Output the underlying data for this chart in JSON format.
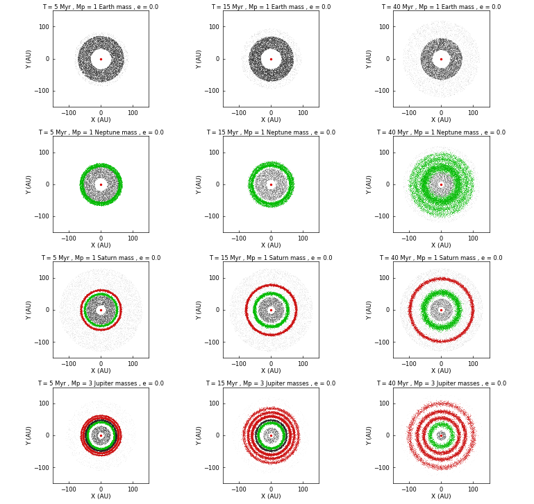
{
  "figsize": [
    7.69,
    7.27
  ],
  "dpi": 100,
  "rows": 4,
  "cols": 3,
  "titles": [
    [
      "T = 5 Myr , Mp = 1 Earth mass , e = 0.0",
      "T = 15 Myr , Mp = 1 Earth mass , e = 0.0",
      "T = 40 Myr , Mp = 1 Earth mass , e = 0.0"
    ],
    [
      "T = 5 Myr , Mp = 1 Neptune mass , e = 0.0",
      "T = 15 Myr , Mp = 1 Neptune mass , e = 0.0",
      "T = 40 Myr , Mp = 1 Neptune mass , e = 0.0"
    ],
    [
      "T = 5 Myr , Mp = 1 Saturn mass , e = 0.0",
      "T = 15 Myr , Mp = 1 Saturn mass , e = 0.0",
      "T = 40 Myr , Mp = 1 Saturn mass , e = 0.0"
    ],
    [
      "T = 5 Myr , Mp = 3 Jupiter masses , e = 0.0",
      "T = 15 Myr , Mp = 3 Jupiter masses , e = 0.0",
      "T = 40 Myr , Mp = 3 Jupiter masses , e = 0.0"
    ]
  ],
  "xlabel": "X (AU)",
  "ylabel": "Y (AU)",
  "xlim": [
    -150,
    150
  ],
  "ylim": [
    -150,
    150
  ],
  "xticks": [
    -100,
    0,
    100
  ],
  "yticks": [
    -100,
    0,
    100
  ],
  "background_color": "#ffffff",
  "black_dot_color": "#222222",
  "green_dot_color": "#00bb00",
  "red_dot_color": "#cc1111",
  "star_color": "#dd0000",
  "title_fontsize": 6.0,
  "axis_label_fontsize": 6.5,
  "tick_fontsize": 6,
  "panel_configs": [
    [
      {
        "black_disk_inner": 32,
        "black_disk_outer": 72,
        "black_disk_n": 8000,
        "black_disk_alpha": 0.7,
        "extra_rings": [],
        "sparse_inner": 72,
        "sparse_outer": 85,
        "sparse_n": 500,
        "sparse_alpha": 0.3
      },
      {
        "black_disk_inner": 32,
        "black_disk_outer": 70,
        "black_disk_n": 8000,
        "black_disk_alpha": 0.75,
        "extra_rings": [],
        "sparse_inner": 70,
        "sparse_outer": 95,
        "sparse_n": 800,
        "sparse_alpha": 0.25
      },
      {
        "black_disk_inner": 28,
        "black_disk_outer": 65,
        "black_disk_n": 6000,
        "black_disk_alpha": 0.6,
        "extra_rings": [],
        "sparse_inner": 65,
        "sparse_outer": 120,
        "sparse_n": 2500,
        "sparse_alpha": 0.2
      }
    ],
    [
      {
        "black_disk_inner": 20,
        "black_disk_outer": 60,
        "black_disk_n": 5000,
        "black_disk_alpha": 0.5,
        "extra_rings": [
          {
            "color": "green",
            "r": 58,
            "spread": 2.0,
            "n": 3000,
            "alpha": 0.9
          },
          {
            "color": "green",
            "r": 64,
            "spread": 1.5,
            "n": 2000,
            "alpha": 0.9
          }
        ],
        "sparse_inner": 0,
        "sparse_outer": 0,
        "sparse_n": 0,
        "sparse_alpha": 0.0
      },
      {
        "black_disk_inner": 15,
        "black_disk_outer": 50,
        "black_disk_n": 3000,
        "black_disk_alpha": 0.45,
        "extra_rings": [
          {
            "color": "green",
            "r": 60,
            "spread": 2.5,
            "n": 4000,
            "alpha": 0.9
          },
          {
            "color": "green",
            "r": 68,
            "spread": 2.0,
            "n": 2000,
            "alpha": 0.85
          }
        ],
        "sparse_inner": 50,
        "sparse_outer": 75,
        "sparse_n": 1000,
        "sparse_alpha": 0.2
      },
      {
        "black_disk_inner": 10,
        "black_disk_outer": 40,
        "black_disk_n": 2000,
        "black_disk_alpha": 0.4,
        "extra_rings": [
          {
            "color": "green",
            "r": 55,
            "spread": 8.0,
            "n": 8000,
            "alpha": 0.7
          },
          {
            "color": "green",
            "r": 80,
            "spread": 5.0,
            "n": 3000,
            "alpha": 0.8
          },
          {
            "color": "green",
            "r": 95,
            "spread": 4.0,
            "n": 2000,
            "alpha": 0.7
          }
        ],
        "sparse_inner": 40,
        "sparse_outer": 120,
        "sparse_n": 3000,
        "sparse_alpha": 0.15
      }
    ],
    [
      {
        "black_disk_inner": 15,
        "black_disk_outer": 45,
        "black_disk_n": 4000,
        "black_disk_alpha": 0.45,
        "extra_rings": [
          {
            "color": "green",
            "r": 50,
            "spread": 1.8,
            "n": 3000,
            "alpha": 0.9
          },
          {
            "color": "red",
            "r": 62,
            "spread": 1.5,
            "n": 4000,
            "alpha": 0.85
          }
        ],
        "sparse_inner": 45,
        "sparse_outer": 130,
        "sparse_n": 5000,
        "sparse_alpha": 0.15
      },
      {
        "black_disk_inner": 12,
        "black_disk_outer": 40,
        "black_disk_n": 3000,
        "black_disk_alpha": 0.4,
        "extra_rings": [
          {
            "color": "green",
            "r": 52,
            "spread": 2.5,
            "n": 4000,
            "alpha": 0.9
          },
          {
            "color": "red",
            "r": 78,
            "spread": 1.8,
            "n": 5000,
            "alpha": 0.85
          }
        ],
        "sparse_inner": 40,
        "sparse_outer": 130,
        "sparse_n": 5000,
        "sparse_alpha": 0.15
      },
      {
        "black_disk_inner": 10,
        "black_disk_outer": 35,
        "black_disk_n": 2000,
        "black_disk_alpha": 0.35,
        "extra_rings": [
          {
            "color": "green",
            "r": 55,
            "spread": 5.0,
            "n": 5000,
            "alpha": 0.8
          },
          {
            "color": "red",
            "r": 98,
            "spread": 2.5,
            "n": 5000,
            "alpha": 0.8
          }
        ],
        "sparse_inner": 35,
        "sparse_outer": 130,
        "sparse_n": 6000,
        "sparse_alpha": 0.15
      }
    ],
    [
      {
        "black_disk_inner": 10,
        "black_disk_outer": 30,
        "black_disk_n": 1500,
        "black_disk_alpha": 0.5,
        "extra_rings": [
          {
            "color": "green",
            "r": 42,
            "spread": 1.5,
            "n": 4000,
            "alpha": 0.9
          },
          {
            "color": "black",
            "r": 48,
            "spread": 1.2,
            "n": 3000,
            "alpha": 0.8
          },
          {
            "color": "red",
            "r": 55,
            "spread": 1.5,
            "n": 5000,
            "alpha": 0.85
          },
          {
            "color": "red",
            "r": 62,
            "spread": 1.2,
            "n": 3000,
            "alpha": 0.8
          }
        ],
        "sparse_inner": 30,
        "sparse_outer": 110,
        "sparse_n": 1500,
        "sparse_alpha": 0.12
      },
      {
        "black_disk_inner": 8,
        "black_disk_outer": 25,
        "black_disk_n": 800,
        "black_disk_alpha": 0.45,
        "extra_rings": [
          {
            "color": "green",
            "r": 40,
            "spread": 2.0,
            "n": 3000,
            "alpha": 0.85
          },
          {
            "color": "black",
            "r": 48,
            "spread": 1.5,
            "n": 2000,
            "alpha": 0.75
          },
          {
            "color": "red",
            "r": 60,
            "spread": 2.0,
            "n": 5000,
            "alpha": 0.85
          },
          {
            "color": "red",
            "r": 72,
            "spread": 2.0,
            "n": 4000,
            "alpha": 0.8
          },
          {
            "color": "red",
            "r": 85,
            "spread": 2.5,
            "n": 3000,
            "alpha": 0.75
          }
        ],
        "sparse_inner": 25,
        "sparse_outer": 120,
        "sparse_n": 1200,
        "sparse_alpha": 0.1
      },
      {
        "black_disk_inner": 5,
        "black_disk_outer": 15,
        "black_disk_n": 300,
        "black_disk_alpha": 0.5,
        "extra_rings": [
          {
            "color": "green",
            "r": 35,
            "spread": 4.0,
            "n": 2000,
            "alpha": 0.75
          },
          {
            "color": "red",
            "r": 55,
            "spread": 3.0,
            "n": 3000,
            "alpha": 0.8
          },
          {
            "color": "red",
            "r": 75,
            "spread": 3.0,
            "n": 4000,
            "alpha": 0.8
          },
          {
            "color": "red",
            "r": 100,
            "spread": 4.0,
            "n": 3000,
            "alpha": 0.75
          }
        ],
        "sparse_inner": 15,
        "sparse_outer": 130,
        "sparse_n": 800,
        "sparse_alpha": 0.1
      }
    ]
  ]
}
